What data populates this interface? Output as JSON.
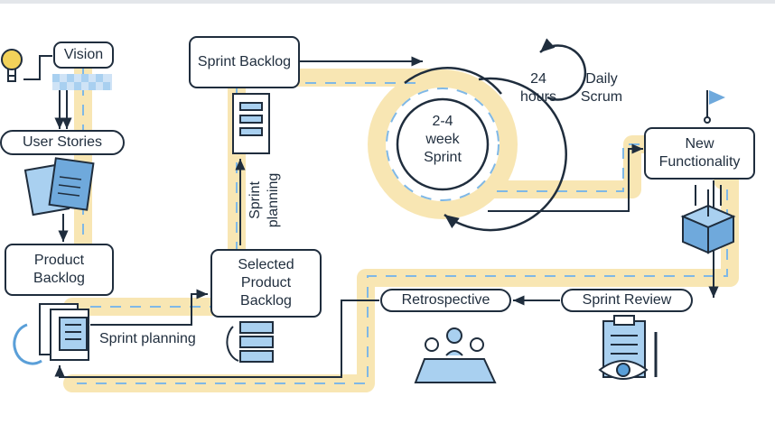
{
  "nodes": {
    "vision": "Vision",
    "user_stories": "User Stories",
    "product_backlog": "Product\nBacklog",
    "sprint_backlog": "Sprint Backlog",
    "selected_product_backlog": "Selected\nProduct\nBacklog",
    "new_functionality": "New\nFunctionality",
    "retrospective": "Retrospective",
    "sprint_review": "Sprint Review"
  },
  "labels": {
    "sprint_planning_bottom": "Sprint planning",
    "sprint_planning_vertical": "Sprint\nplanning",
    "sprint_duration": "2-4\nweek\nSprint",
    "hours": "24\nhours",
    "daily_scrum": "Daily\nScrum"
  },
  "colors": {
    "outline": "#1f2d3d",
    "path_fill": "#f8e6b3",
    "dash_blue": "#7fb8e6",
    "accent_blue": "#a9d0f0",
    "icon_blue": "#5a9fd8"
  },
  "icons": [
    "lightbulb-icon",
    "checker-banner-icon",
    "user-stories-cards-icon",
    "backlog-documents-icon",
    "refresh-arrow-icon",
    "document-icon",
    "stack-icon",
    "flag-icon",
    "box-icon",
    "clipboard-eye-icon",
    "team-meeting-icon"
  ]
}
